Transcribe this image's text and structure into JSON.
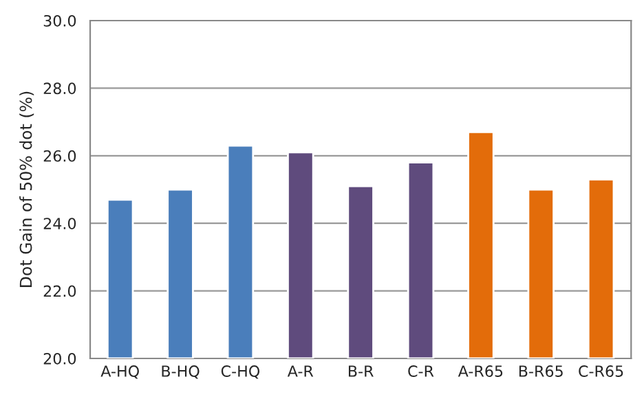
{
  "chart_data": {
    "type": "bar",
    "ylabel": "Dot Gain of 50% dot (%)",
    "categories": [
      "A-HQ",
      "B-HQ",
      "C-HQ",
      "A-R",
      "B-R",
      "C-R",
      "A-R65",
      "B-R65",
      "C-R65"
    ],
    "values": [
      24.7,
      25.0,
      26.3,
      26.1,
      25.1,
      25.8,
      26.7,
      25.0,
      25.3
    ],
    "colors": [
      "#4a7ebb",
      "#4a7ebb",
      "#4a7ebb",
      "#5f4b7d",
      "#5f4b7d",
      "#5f4b7d",
      "#e36c0a",
      "#e36c0a",
      "#e36c0a"
    ],
    "ylim": [
      20,
      30
    ],
    "yticks": [
      {
        "value": 20,
        "label": "20.0"
      },
      {
        "value": 22,
        "label": "22.0"
      },
      {
        "value": 24,
        "label": "24.0"
      },
      {
        "value": 26,
        "label": "26.0"
      },
      {
        "value": 28,
        "label": "28.0"
      },
      {
        "value": 30,
        "label": "30.0"
      }
    ],
    "grid": "y",
    "legend": false
  }
}
